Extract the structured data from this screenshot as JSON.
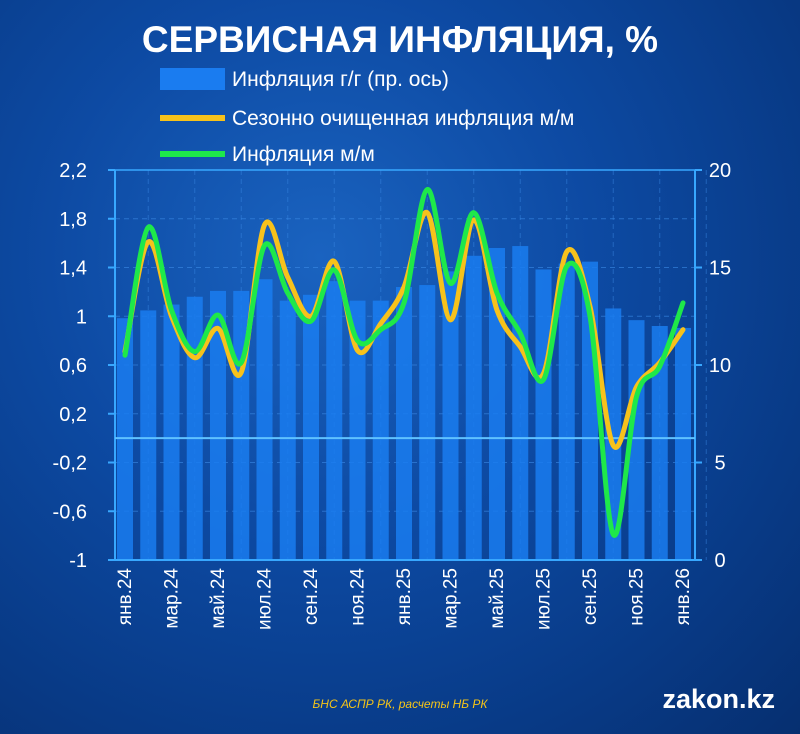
{
  "chart_data": {
    "type": "bar+line",
    "title": "СЕРВИСНАЯ ИНФЛЯЦИЯ, %",
    "categories": [
      "янв.24",
      "фев.24",
      "мар.24",
      "апр.24",
      "май.24",
      "июн.24",
      "июл.24",
      "авг.24",
      "сен.24",
      "окт.24",
      "ноя.24",
      "дек.24",
      "янв.25",
      "фев.25",
      "мар.25",
      "апр.25",
      "май.25",
      "июн.25",
      "июл.25",
      "авг.25",
      "сен.25",
      "окт.25",
      "ноя.25",
      "дек.25",
      "янв.26"
    ],
    "x_tick_labels": [
      "янв.24",
      "мар.24",
      "май.24",
      "июл.24",
      "сен.24",
      "ноя.24",
      "янв.25",
      "мар.25",
      "май.25",
      "июл.25",
      "сен.25",
      "ноя.25",
      "янв.26"
    ],
    "series": [
      {
        "name": "Инфляция г/г (пр. ось)",
        "type": "bar",
        "axis": "right",
        "color": "#1a7cf0",
        "values": [
          12.4,
          12.8,
          13.1,
          13.5,
          13.8,
          13.8,
          14.4,
          13.3,
          13.6,
          14.3,
          13.3,
          13.3,
          14.0,
          14.1,
          14.8,
          15.6,
          16.0,
          16.1,
          14.9,
          15.2,
          15.3,
          12.9,
          12.3,
          12.0,
          11.9
        ]
      },
      {
        "name": "Сезонно очищенная инфляция м/м",
        "type": "line",
        "axis": "left",
        "color": "#f7c21b",
        "values": [
          0.71,
          1.61,
          1.0,
          0.66,
          0.9,
          0.54,
          1.75,
          1.32,
          1.0,
          1.45,
          0.72,
          0.94,
          1.24,
          1.85,
          0.97,
          1.79,
          1.05,
          0.75,
          0.53,
          1.53,
          1.08,
          -0.06,
          0.42,
          0.62,
          0.89
        ]
      },
      {
        "name": "Инфляция м/м",
        "type": "line",
        "axis": "left",
        "color": "#1ee84a",
        "values": [
          0.68,
          1.73,
          1.05,
          0.71,
          1.01,
          0.62,
          1.58,
          1.19,
          0.96,
          1.38,
          0.8,
          0.89,
          1.11,
          2.04,
          1.27,
          1.85,
          1.19,
          0.86,
          0.48,
          1.41,
          1.0,
          -0.79,
          0.34,
          0.59,
          1.11
        ]
      }
    ],
    "left_axis": {
      "ylim": [
        -1,
        2.2
      ],
      "ticks": [
        "2,2",
        "1,8",
        "1,4",
        "1",
        "0,6",
        "0,2",
        "-0,2",
        "-0,6",
        "-1"
      ],
      "tick_values": [
        2.2,
        1.8,
        1.4,
        1,
        0.6,
        0.2,
        -0.2,
        -0.6,
        -1
      ]
    },
    "right_axis": {
      "ylim": [
        0,
        20
      ],
      "ticks": [
        "20",
        "15",
        "10",
        "5",
        "0"
      ],
      "tick_values": [
        20,
        15,
        10,
        5,
        0
      ]
    },
    "legend_position": "top-left",
    "grid": true
  },
  "footer": {
    "source": "БНС АСПР РК, расчеты НБ РК",
    "logo": "zakon.kz"
  }
}
